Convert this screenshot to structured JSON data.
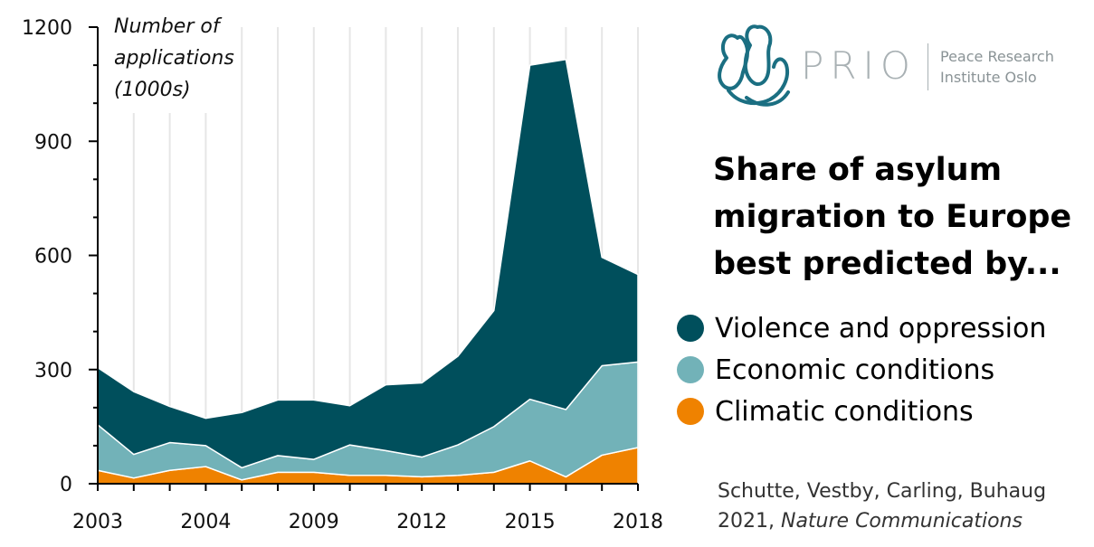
{
  "chart_data": {
    "type": "area",
    "stacked": true,
    "ylabel": [
      "Number of",
      "applications",
      "(1000s)"
    ],
    "ylim": [
      0,
      1200
    ],
    "yticks": [
      0,
      300,
      600,
      900,
      1200
    ],
    "x_tick_labels": [
      "2003",
      "2004",
      "2009",
      "2012",
      "2015",
      "2018"
    ],
    "x": [
      2003,
      2004,
      2005,
      2006,
      2007,
      2008,
      2009,
      2010,
      2011,
      2012,
      2013,
      2014,
      2015,
      2016,
      2017,
      2018
    ],
    "grid": "vertical",
    "series": [
      {
        "name": "Climatic conditions",
        "color": "#ef8200",
        "values": [
          35,
          15,
          35,
          45,
          10,
          30,
          30,
          22,
          22,
          18,
          22,
          30,
          60,
          18,
          75,
          95
        ]
      },
      {
        "name": "Economic conditions",
        "color": "#72b2b8",
        "values": [
          120,
          62,
          73,
          55,
          32,
          44,
          34,
          80,
          65,
          52,
          80,
          120,
          162,
          177,
          235,
          225
        ]
      },
      {
        "name": "Violence and oppression",
        "color": "#004f5c",
        "values": [
          150,
          165,
          95,
          72,
          145,
          146,
          156,
          103,
          173,
          195,
          233,
          305,
          878,
          920,
          285,
          230
        ]
      }
    ]
  },
  "logo": {
    "word": "PRIO",
    "line1": "Peace Research",
    "line2": "Institute Oslo",
    "color": "#1b6f82"
  },
  "title": {
    "line1": "Share of asylum",
    "line2": "migration to Europe",
    "line3": "best predicted by..."
  },
  "legend": {
    "items": [
      {
        "label": "Violence and oppression",
        "color": "#004f5c"
      },
      {
        "label": "Economic conditions",
        "color": "#72b2b8"
      },
      {
        "label": "Climatic conditions",
        "color": "#ef8200"
      }
    ]
  },
  "citation": {
    "line1": "Schutte, Vestby, Carling, Buhaug",
    "line2_prefix": "2021, ",
    "journal": "Nature Communications"
  }
}
